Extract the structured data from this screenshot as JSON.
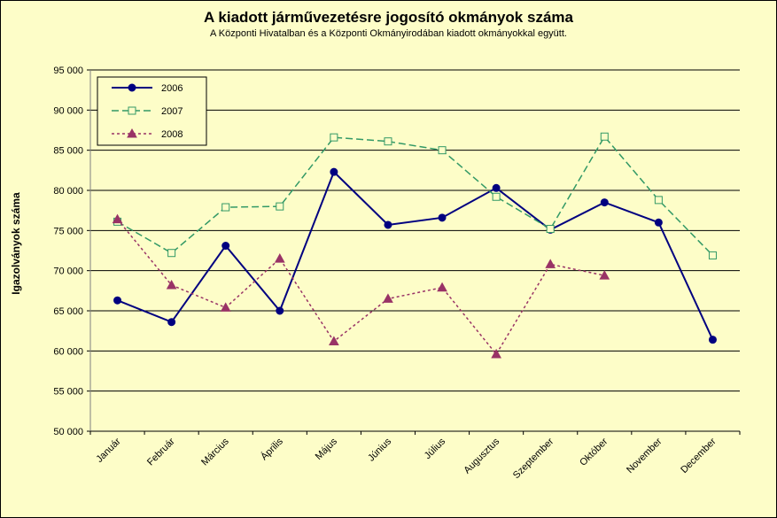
{
  "chart_data": {
    "type": "line",
    "title": "A  kiadott járművezetésre  jogosító okmányok száma",
    "subtitle": "A  Központi Hivatalban és a Központi Okmányirodában kiadott okmányokkal együtt.",
    "ylabel": "Igazolványok száma",
    "xlabel": "",
    "categories": [
      "Január",
      "Február",
      "Március",
      "Április",
      "Május",
      "Június",
      "Július",
      "Augusztus",
      "Szeptember",
      "Október",
      "November",
      "December"
    ],
    "ylim": [
      50000,
      95000
    ],
    "yticks": [
      50000,
      55000,
      60000,
      65000,
      70000,
      75000,
      80000,
      85000,
      90000,
      95000
    ],
    "ytick_labels": [
      "50 000",
      "55 000",
      "60 000",
      "65 000",
      "70 000",
      "75 000",
      "80 000",
      "85 000",
      "90 000",
      "95 000"
    ],
    "grid": "horizontal",
    "legend_position": "top-left",
    "series": [
      {
        "name": "2006",
        "color": "#000080",
        "values": [
          66300,
          63600,
          73100,
          65000,
          82300,
          75700,
          76600,
          80300,
          75100,
          78500,
          76000,
          61400
        ]
      },
      {
        "name": "2007",
        "color": "#339966",
        "values": [
          76100,
          72200,
          77900,
          78000,
          86600,
          86100,
          85000,
          79200,
          75200,
          86700,
          78800,
          71900
        ]
      },
      {
        "name": "2008",
        "color": "#993366",
        "values": [
          76400,
          68200,
          65400,
          71500,
          61200,
          66500,
          67900,
          59600,
          70800,
          69400,
          null,
          null
        ]
      }
    ]
  }
}
